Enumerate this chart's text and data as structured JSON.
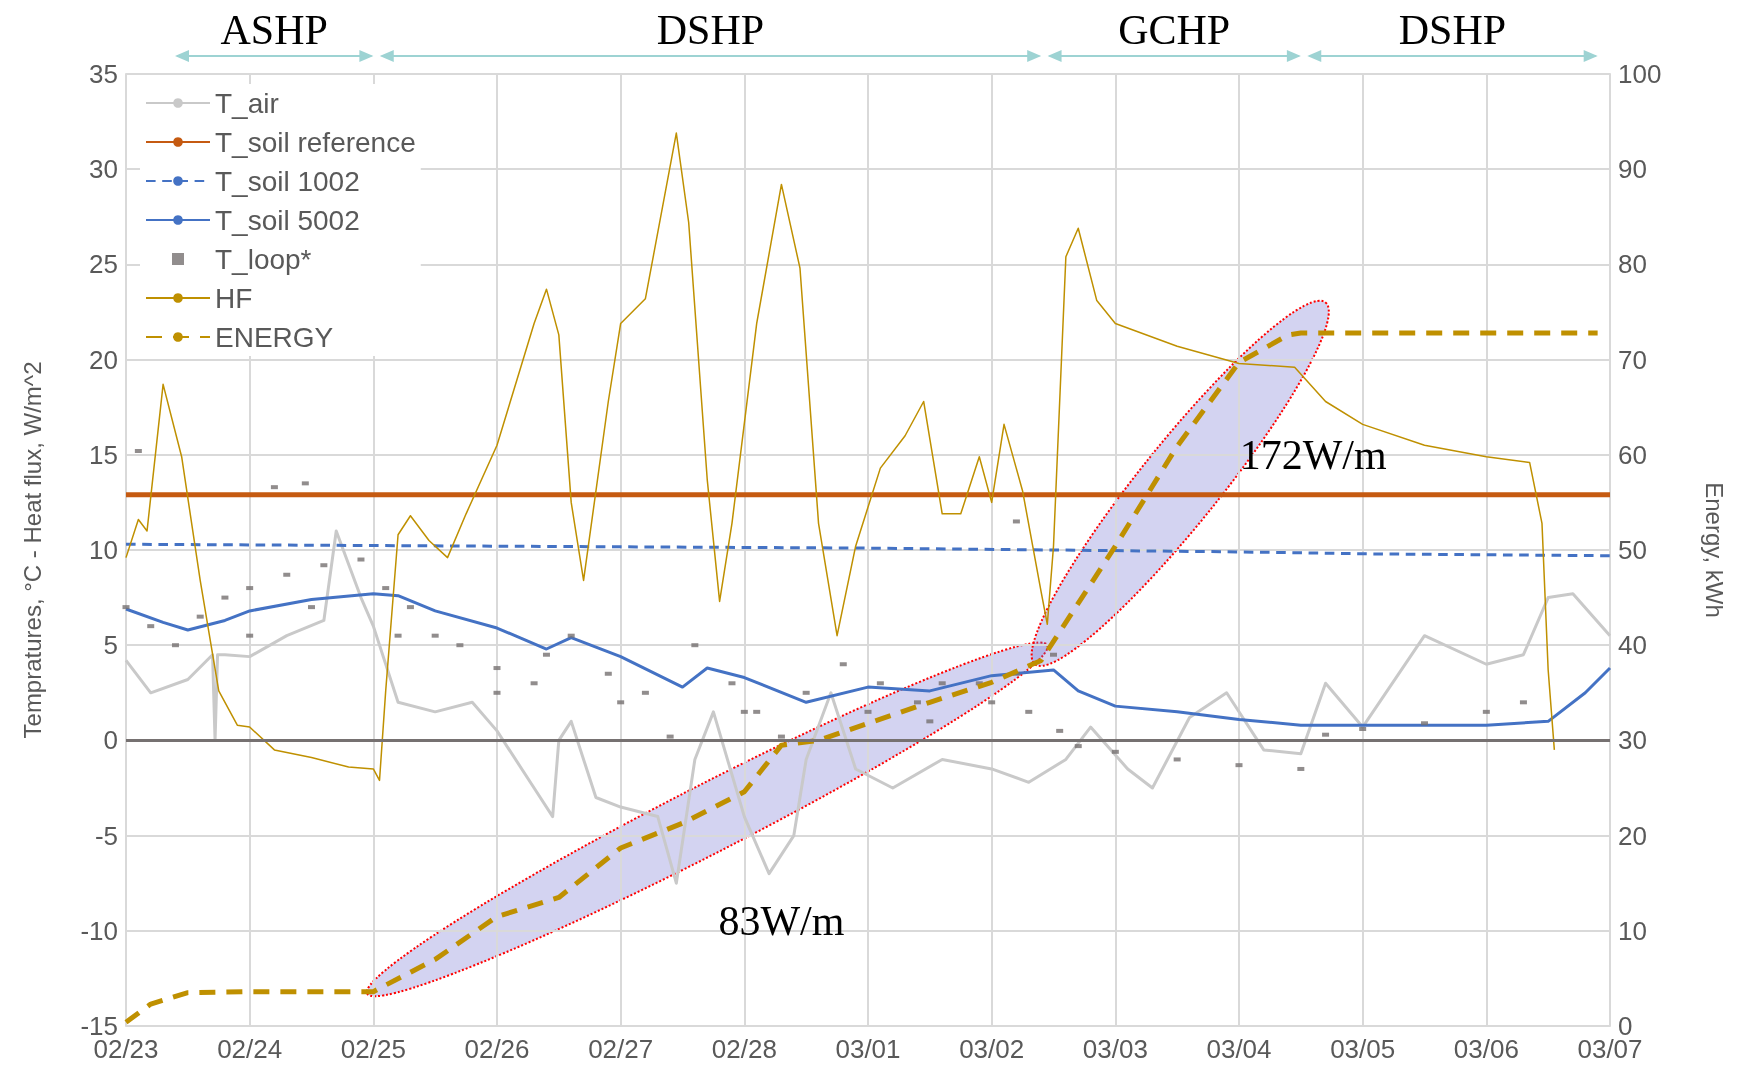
{
  "chart_data": {
    "type": "line",
    "ylabel": "Tempratures, °C - Heat flux, W/m^2",
    "y2label": "Energy, kWh",
    "xlim": [
      "--02-23",
      "--03-07"
    ],
    "xticks": [
      {
        "value": "--02-23",
        "label": "02/23"
      },
      {
        "value": "--02-24",
        "label": "02/24"
      },
      {
        "value": "--02-25",
        "label": "02/25"
      },
      {
        "value": "--02-26",
        "label": "02/26"
      },
      {
        "value": "--02-27",
        "label": "02/27"
      },
      {
        "value": "--02-28",
        "label": "02/28"
      },
      {
        "value": "--03-01",
        "label": "03/01"
      },
      {
        "value": "--03-02",
        "label": "03/02"
      },
      {
        "value": "--03-03",
        "label": "03/03"
      },
      {
        "value": "--03-04",
        "label": "03/04"
      },
      {
        "value": "--03-05",
        "label": "03/05"
      },
      {
        "value": "--03-06",
        "label": "03/06"
      },
      {
        "value": "--03-07",
        "label": "03/07"
      }
    ],
    "ylim": [
      -15,
      35
    ],
    "yticks": [
      -15,
      -10,
      -5,
      0,
      5,
      10,
      15,
      20,
      25,
      30,
      35
    ],
    "y2lim": [
      0,
      100
    ],
    "y2ticks": [
      0,
      10,
      20,
      30,
      40,
      50,
      60,
      70,
      80,
      90,
      100
    ],
    "grid": true,
    "legend": "top left",
    "marker": "none",
    "ref_lines": [
      {
        "axis": "y",
        "value": 0,
        "color": "#767171"
      }
    ],
    "annotations": [
      "ASHP",
      "DSHP",
      "GCHP",
      "DSHP",
      "83W/m",
      "172W/m"
    ],
    "series": [
      {
        "name": "T_air",
        "color": "#c9c9c9",
        "x": [
          "--02-23T00:00",
          "--02-23T04:48",
          "--02-23T12:00",
          "--02-23T16:48",
          "--02-23T17:17",
          "--02-23T17:46",
          "--02-23T19:12",
          "--02-24T00:00",
          "--02-24T07:12",
          "--02-24T14:24",
          "--02-24T16:48",
          "--02-24T21:36",
          "--02-25T00:00",
          "--02-25T04:48",
          "--02-25T12:00",
          "--02-25T19:12",
          "--02-26T00:00",
          "--02-26T07:12",
          "--02-26T10:48",
          "--02-26T12:00",
          "--02-26T14:24",
          "--02-26T19:12",
          "--02-27T00:00",
          "--02-27T07:12",
          "--02-27T10:48",
          "--02-27T14:24",
          "--02-27T18:00",
          "--02-28T00:00",
          "--02-28T04:48",
          "--02-28T09:36",
          "--02-28T12:00",
          "--02-28T16:48",
          "--02-28T21:36",
          "--03-01T04:48",
          "--03-01T14:24",
          "--03-02T00:00",
          "--03-02T07:12",
          "--03-02T14:24",
          "--03-02T19:12",
          "--03-03T02:24",
          "--03-03T07:12",
          "--03-03T14:24",
          "--03-03T21:36",
          "--03-04T04:48",
          "--03-04T12:00",
          "--03-04T16:48",
          "--03-05T00:00",
          "--03-05T12:00",
          "--03-06T00:00",
          "--03-06T07:12",
          "--03-06T12:00",
          "--03-06T16:48",
          "--03-07T00:00"
        ],
        "values": [
          4.2,
          2.5,
          3.2,
          4.5,
          0,
          4.5,
          4.5,
          4.4,
          5.5,
          6.3,
          11,
          7.5,
          6,
          2,
          1.5,
          2,
          0.5,
          -2.5,
          -4,
          0,
          1,
          -3,
          -3.5,
          -4,
          -7.5,
          -1,
          1.5,
          -4,
          -7,
          -5,
          -1,
          2.5,
          -1.5,
          -2.5,
          -1,
          -1.5,
          -2.2,
          -1,
          0.7,
          -1.5,
          -2.5,
          1.2,
          2.5,
          -0.5,
          -0.7,
          3,
          0.7,
          5.5,
          4,
          4.5,
          7.5,
          7.7,
          5.5
        ]
      },
      {
        "name": "T_soil reference",
        "color": "#c55a11",
        "x": [
          "--02-23T00:00",
          "--03-07T00:00"
        ],
        "values": [
          12.9,
          12.9
        ]
      },
      {
        "name": "T_soil 1002",
        "color": "#4472c4",
        "line_style": "dashed",
        "x": [
          "--02-23T00:00",
          "--02-26T00:00",
          "--03-01T00:00",
          "--03-02T12:00",
          "--03-04T00:00",
          "--03-05T00:00",
          "--03-07T00:00"
        ],
        "values": [
          10.3,
          10.2,
          10.1,
          10,
          9.9,
          9.8,
          9.7
        ]
      },
      {
        "name": "T_soil 5002",
        "color": "#4472c4",
        "x": [
          "--02-23T00:00",
          "--02-23T07:12",
          "--02-23T12:00",
          "--02-23T19:12",
          "--02-24T00:00",
          "--02-24T12:00",
          "--02-25T00:00",
          "--02-25T04:48",
          "--02-25T12:00",
          "--02-26T00:00",
          "--02-26T09:36",
          "--02-26T14:24",
          "--02-27T00:00",
          "--02-27T12:00",
          "--02-27T16:48",
          "--02-28T00:00",
          "--02-28T12:00",
          "--03-01T00:00",
          "--03-01T12:00",
          "--03-02T00:00",
          "--03-02T12:00",
          "--03-02T16:48",
          "--03-03T00:00",
          "--03-03T12:00",
          "--03-04T00:00",
          "--03-04T12:00",
          "--03-05T00:00",
          "--03-06T00:00",
          "--03-06T12:00",
          "--03-06T19:12",
          "--03-07T00:00"
        ],
        "values": [
          6.9,
          6.2,
          5.8,
          6.3,
          6.8,
          7.4,
          7.7,
          7.6,
          6.8,
          5.9,
          4.8,
          5.4,
          4.4,
          2.8,
          3.8,
          3.3,
          2,
          2.8,
          2.6,
          3.4,
          3.7,
          2.6,
          1.8,
          1.5,
          1.1,
          0.8,
          0.8,
          0.8,
          1,
          2.5,
          3.8
        ]
      },
      {
        "name": "T_loop*",
        "type": "scatter",
        "marker": "square",
        "color": "#767171",
        "x": [
          "--02-23T00:00",
          "--02-23T02:24",
          "--02-23T04:48",
          "--02-23T09:36",
          "--02-23T14:24",
          "--02-23T19:12",
          "--02-24T00:00",
          "--02-24T00:00",
          "--02-24T04:48",
          "--02-24T07:12",
          "--02-24T10:48",
          "--02-24T12:00",
          "--02-24T14:24",
          "--02-24T21:36",
          "--02-25T02:24",
          "--02-25T04:48",
          "--02-25T07:12",
          "--02-25T12:00",
          "--02-25T16:48",
          "--02-26T00:00",
          "--02-26T00:00",
          "--02-26T07:12",
          "--02-26T09:36",
          "--02-26T14:24",
          "--02-26T21:36",
          "--02-27T00:00",
          "--02-27T04:48",
          "--02-27T09:36",
          "--02-27T14:24",
          "--02-27T21:36",
          "--02-28T00:00",
          "--02-28T02:24",
          "--02-28T07:12",
          "--02-28T12:00",
          "--02-28T19:12",
          "--03-01T00:00",
          "--03-01T02:24",
          "--03-01T09:36",
          "--03-01T12:00",
          "--03-01T14:24",
          "--03-01T21:36",
          "--03-02T00:00",
          "--03-02T04:48",
          "--03-02T04:48",
          "--03-02T07:12",
          "--03-02T12:00",
          "--03-02T13:12",
          "--03-02T16:48",
          "--03-03T00:00",
          "--03-03T12:00",
          "--03-04T00:00",
          "--03-04T12:00",
          "--03-04T16:48",
          "--03-05T00:00",
          "--03-05T12:00",
          "--03-06T00:00",
          "--03-06T07:12"
        ],
        "values": [
          7,
          15.2,
          6,
          5,
          6.5,
          7.5,
          8,
          5.5,
          13.3,
          8.7,
          13.5,
          7,
          9.2,
          9.5,
          8,
          5.5,
          7,
          5.5,
          5,
          3.8,
          2.5,
          3,
          4.5,
          5.5,
          3.5,
          2,
          2.5,
          0.2,
          5,
          3,
          1.5,
          1.5,
          0.2,
          2.5,
          4,
          1.5,
          3,
          2,
          1,
          3,
          3,
          2,
          3.5,
          11.5,
          1.5,
          4.5,
          0.5,
          -0.3,
          -0.6,
          -1,
          -1.3,
          -1.5,
          0.3,
          0.6,
          0.9,
          1.5,
          2
        ]
      },
      {
        "name": "HF",
        "color": "#bf9000",
        "x": [
          "--02-23T00:00",
          "--02-23T02:24",
          "--02-23T04:05",
          "--02-23T07:12",
          "--02-23T10:48",
          "--02-23T14:24",
          "--02-23T18:00",
          "--02-23T21:36",
          "--02-24T00:00",
          "--02-24T04:48",
          "--02-24T12:00",
          "--02-24T19:12",
          "--02-25T00:00",
          "--02-25T01:12",
          "--02-25T02:24",
          "--02-25T04:48",
          "--02-25T07:12",
          "--02-25T10:48",
          "--02-25T14:24",
          "--02-25T18:00",
          "--02-26T00:00",
          "--02-26T07:12",
          "--02-26T09:36",
          "--02-26T12:00",
          "--02-26T14:24",
          "--02-26T16:48",
          "--02-26T21:36",
          "--02-27T00:00",
          "--02-27T04:48",
          "--02-27T10:48",
          "--02-27T13:12",
          "--02-27T16:48",
          "--02-27T19:12",
          "--02-27T21:36",
          "--02-28T02:24",
          "--02-28T07:12",
          "--02-28T10:48",
          "--02-28T14:24",
          "--02-28T18:00",
          "--02-28T21:36",
          "--03-01T02:24",
          "--03-01T07:12",
          "--03-01T10:48",
          "--03-01T14:24",
          "--03-01T18:00",
          "--03-01T21:36",
          "--03-02T00:00",
          "--03-02T02:24",
          "--03-02T06:00",
          "--03-02T09:36",
          "--03-02T10:48",
          "--03-02T12:00",
          "--03-02T14:24",
          "--03-02T16:48",
          "--03-02T20:24",
          "--03-03T00:00",
          "--03-03T12:00",
          "--03-04T00:00",
          "--03-04T10:48",
          "--03-04T16:48",
          "--03-05T00:00",
          "--03-05T12:00",
          "--03-06T00:00",
          "--03-06T08:24",
          "--03-06T10:48",
          "--03-06T12:00",
          "--03-06T13:12"
        ],
        "values": [
          9.6,
          11.6,
          11,
          18.7,
          14.9,
          8.4,
          2.6,
          0.8,
          0.7,
          -0.5,
          -0.9,
          -1.4,
          -1.5,
          -2.1,
          2.6,
          10.8,
          11.8,
          10.5,
          9.6,
          11.9,
          15.5,
          21.9,
          23.7,
          21.3,
          12.5,
          8.4,
          17.8,
          21.9,
          23.2,
          31.9,
          27.2,
          13.7,
          7.3,
          11.4,
          21.9,
          29.2,
          24.8,
          11.4,
          5.5,
          10.2,
          14.3,
          16,
          17.8,
          11.9,
          11.9,
          14.9,
          12.5,
          16.6,
          13.1,
          7.8,
          6.1,
          10.2,
          25.4,
          26.9,
          23.1,
          21.9,
          20.7,
          19.8,
          19.6,
          17.8,
          16.6,
          15.5,
          14.9,
          14.6,
          11.4,
          3.7,
          -0.5
        ]
      },
      {
        "name": "ENERGY",
        "color": "#bf9000",
        "line_style": "dashed",
        "axis": "y2",
        "x": [
          "--02-23T00:00",
          "--02-23T04:48",
          "--02-23T12:00",
          "--02-24T00:00",
          "--02-25T00:00",
          "--02-25T02:24",
          "--02-25T12:00",
          "--02-26T00:00",
          "--02-26T12:00",
          "--02-27T00:00",
          "--02-27T12:00",
          "--02-28T00:00",
          "--02-28T07:12",
          "--02-28T14:24",
          "--03-01T00:00",
          "--03-01T12:00",
          "--03-02T00:00",
          "--03-02T09:36",
          "--03-02T12:00",
          "--03-03T00:00",
          "--03-03T12:00",
          "--03-04T00:00",
          "--03-04T09:36",
          "--03-04T12:00",
          "--03-06T12:00",
          "--03-06T21:36"
        ],
        "values": [
          0.4,
          2.3,
          3.5,
          3.6,
          3.6,
          4.3,
          7,
          11.5,
          13.5,
          18.7,
          21.3,
          24.6,
          29.5,
          30,
          31.8,
          34,
          36.1,
          38.4,
          40.4,
          50.4,
          60.9,
          69.7,
          72.6,
          72.8,
          72.8,
          72.8
        ]
      }
    ]
  }
}
